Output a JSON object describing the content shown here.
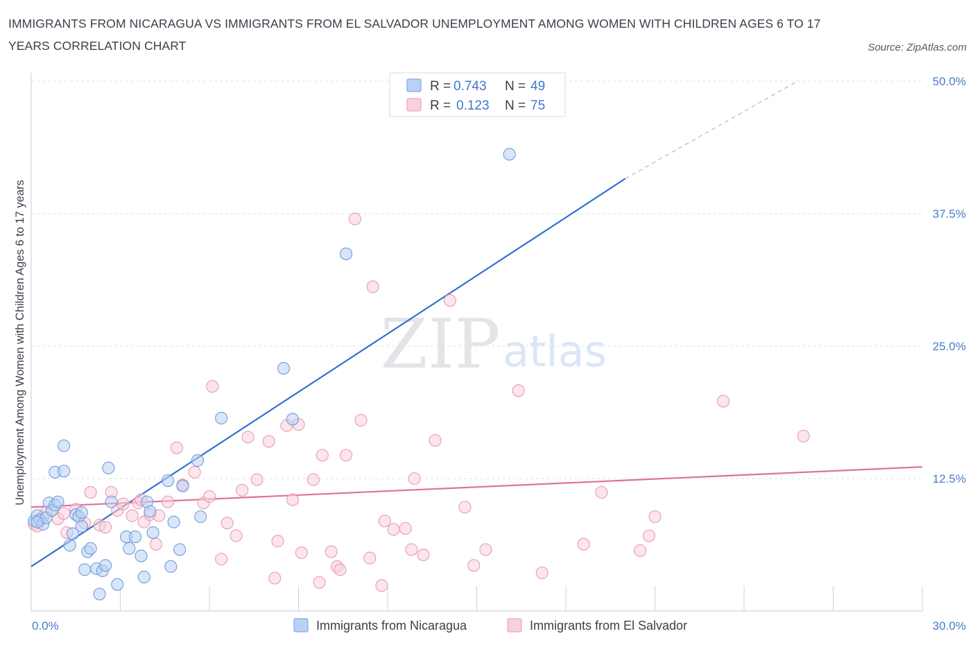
{
  "title": "IMMIGRANTS FROM NICARAGUA VS IMMIGRANTS FROM EL SALVADOR UNEMPLOYMENT AMONG WOMEN WITH CHILDREN AGES 6 TO 17 YEARS CORRELATION CHART",
  "source": "Source: ZipAtlas.com",
  "watermark": {
    "zip": "ZIP",
    "atlas": "atlas"
  },
  "legend": {
    "r_label": "R =",
    "n_label": "N =",
    "rows": [
      {
        "r": "0.743",
        "n": "49",
        "color": "#a9c8f0",
        "stroke": "#6f9be0"
      },
      {
        "r": "0.123",
        "n": "75",
        "color": "#f7c3d2",
        "stroke": "#e89ab2"
      }
    ]
  },
  "chart_data": {
    "type": "scatter",
    "ylabel": "Unemployment Among Women with Children Ages 6 to 17 years",
    "xlabel": "",
    "xlim": [
      0,
      30
    ],
    "ylim": [
      0,
      50
    ],
    "x_tick_labels": [
      "0.0%",
      "30.0%"
    ],
    "y_ticks": [
      12.5,
      25.0,
      37.5,
      50.0
    ],
    "y_tick_labels": [
      "12.5%",
      "25.0%",
      "37.5%",
      "50.0%"
    ],
    "grid": "horizontal dashed",
    "legend_position": "top-center",
    "series": [
      {
        "name": "Immigrants from Nicaragua",
        "color": "#6f9be0",
        "fill": "#b9d2f3",
        "trend": {
          "x": [
            0,
            20
          ],
          "y": [
            4.2,
            40.8
          ],
          "extended_to": [
            25.8,
            50.0
          ],
          "color": "#2f72cf"
        },
        "points": [
          [
            0.1,
            8.5
          ],
          [
            0.2,
            9.0
          ],
          [
            0.3,
            8.6
          ],
          [
            0.4,
            8.2
          ],
          [
            0.5,
            8.8
          ],
          [
            0.6,
            10.2
          ],
          [
            0.7,
            9.5
          ],
          [
            0.8,
            10.0
          ],
          [
            0.9,
            10.3
          ],
          [
            0.8,
            13.1
          ],
          [
            1.1,
            13.2
          ],
          [
            1.1,
            15.6
          ],
          [
            1.3,
            6.2
          ],
          [
            1.4,
            7.3
          ],
          [
            1.5,
            9.1
          ],
          [
            1.6,
            8.9
          ],
          [
            1.7,
            8.0
          ],
          [
            1.7,
            9.3
          ],
          [
            1.8,
            3.9
          ],
          [
            1.9,
            5.6
          ],
          [
            2.0,
            5.9
          ],
          [
            2.2,
            4.0
          ],
          [
            2.3,
            1.6
          ],
          [
            2.4,
            3.8
          ],
          [
            2.5,
            4.3
          ],
          [
            2.6,
            13.5
          ],
          [
            2.7,
            10.3
          ],
          [
            2.9,
            2.5
          ],
          [
            3.2,
            7.0
          ],
          [
            3.3,
            5.9
          ],
          [
            3.5,
            7.0
          ],
          [
            3.7,
            5.2
          ],
          [
            3.8,
            3.2
          ],
          [
            3.9,
            10.3
          ],
          [
            4.0,
            9.4
          ],
          [
            4.1,
            7.4
          ],
          [
            4.7,
            4.2
          ],
          [
            4.8,
            8.4
          ],
          [
            4.6,
            12.3
          ],
          [
            5.1,
            11.8
          ],
          [
            5.0,
            5.8
          ],
          [
            5.6,
            14.2
          ],
          [
            5.7,
            8.9
          ],
          [
            6.4,
            18.2
          ],
          [
            8.5,
            22.9
          ],
          [
            8.8,
            18.1
          ],
          [
            10.6,
            33.7
          ],
          [
            16.1,
            43.1
          ],
          [
            0.2,
            8.4
          ]
        ]
      },
      {
        "name": "Immigrants from El Salvador",
        "color": "#e89ab2",
        "fill": "#f9d0dc",
        "trend": {
          "x": [
            0,
            30
          ],
          "y": [
            9.8,
            13.6
          ],
          "color": "#e0709a"
        },
        "points": [
          [
            0.1,
            8.2
          ],
          [
            0.3,
            8.6
          ],
          [
            0.4,
            8.9
          ],
          [
            0.5,
            9.3
          ],
          [
            0.9,
            8.7
          ],
          [
            1.1,
            9.2
          ],
          [
            1.2,
            7.4
          ],
          [
            1.5,
            9.6
          ],
          [
            1.8,
            8.3
          ],
          [
            2.0,
            11.2
          ],
          [
            2.3,
            8.1
          ],
          [
            2.5,
            7.9
          ],
          [
            2.7,
            11.2
          ],
          [
            2.9,
            9.5
          ],
          [
            3.1,
            10.1
          ],
          [
            3.4,
            9.0
          ],
          [
            3.6,
            10.2
          ],
          [
            3.8,
            8.4
          ],
          [
            4.0,
            9.1
          ],
          [
            4.2,
            6.3
          ],
          [
            4.3,
            9.0
          ],
          [
            4.6,
            10.3
          ],
          [
            4.9,
            15.4
          ],
          [
            5.1,
            11.9
          ],
          [
            5.5,
            13.1
          ],
          [
            5.8,
            10.2
          ],
          [
            6.0,
            10.8
          ],
          [
            6.1,
            21.2
          ],
          [
            6.4,
            4.9
          ],
          [
            6.6,
            8.3
          ],
          [
            6.9,
            7.1
          ],
          [
            7.1,
            11.4
          ],
          [
            7.3,
            16.4
          ],
          [
            7.6,
            12.4
          ],
          [
            8.0,
            16.0
          ],
          [
            8.2,
            3.1
          ],
          [
            8.3,
            6.6
          ],
          [
            8.6,
            17.5
          ],
          [
            8.8,
            10.5
          ],
          [
            9.0,
            17.6
          ],
          [
            9.1,
            5.5
          ],
          [
            9.5,
            12.4
          ],
          [
            9.7,
            2.7
          ],
          [
            9.8,
            14.7
          ],
          [
            10.1,
            5.6
          ],
          [
            10.3,
            4.2
          ],
          [
            10.4,
            3.9
          ],
          [
            10.6,
            14.7
          ],
          [
            11.1,
            18.0
          ],
          [
            11.4,
            5.0
          ],
          [
            11.5,
            30.6
          ],
          [
            11.8,
            2.4
          ],
          [
            11.9,
            8.5
          ],
          [
            12.2,
            7.7
          ],
          [
            12.6,
            7.8
          ],
          [
            12.8,
            5.8
          ],
          [
            12.9,
            12.5
          ],
          [
            13.2,
            5.3
          ],
          [
            13.6,
            16.1
          ],
          [
            14.1,
            29.3
          ],
          [
            14.6,
            9.8
          ],
          [
            14.9,
            4.3
          ],
          [
            15.3,
            5.8
          ],
          [
            16.4,
            20.8
          ],
          [
            17.2,
            3.6
          ],
          [
            18.6,
            6.3
          ],
          [
            19.2,
            11.2
          ],
          [
            20.5,
            5.7
          ],
          [
            20.8,
            7.1
          ],
          [
            21.0,
            8.9
          ],
          [
            23.3,
            19.8
          ],
          [
            26.0,
            16.5
          ],
          [
            10.9,
            37.0
          ],
          [
            0.2,
            8.0
          ],
          [
            3.7,
            10.5
          ]
        ]
      }
    ]
  }
}
